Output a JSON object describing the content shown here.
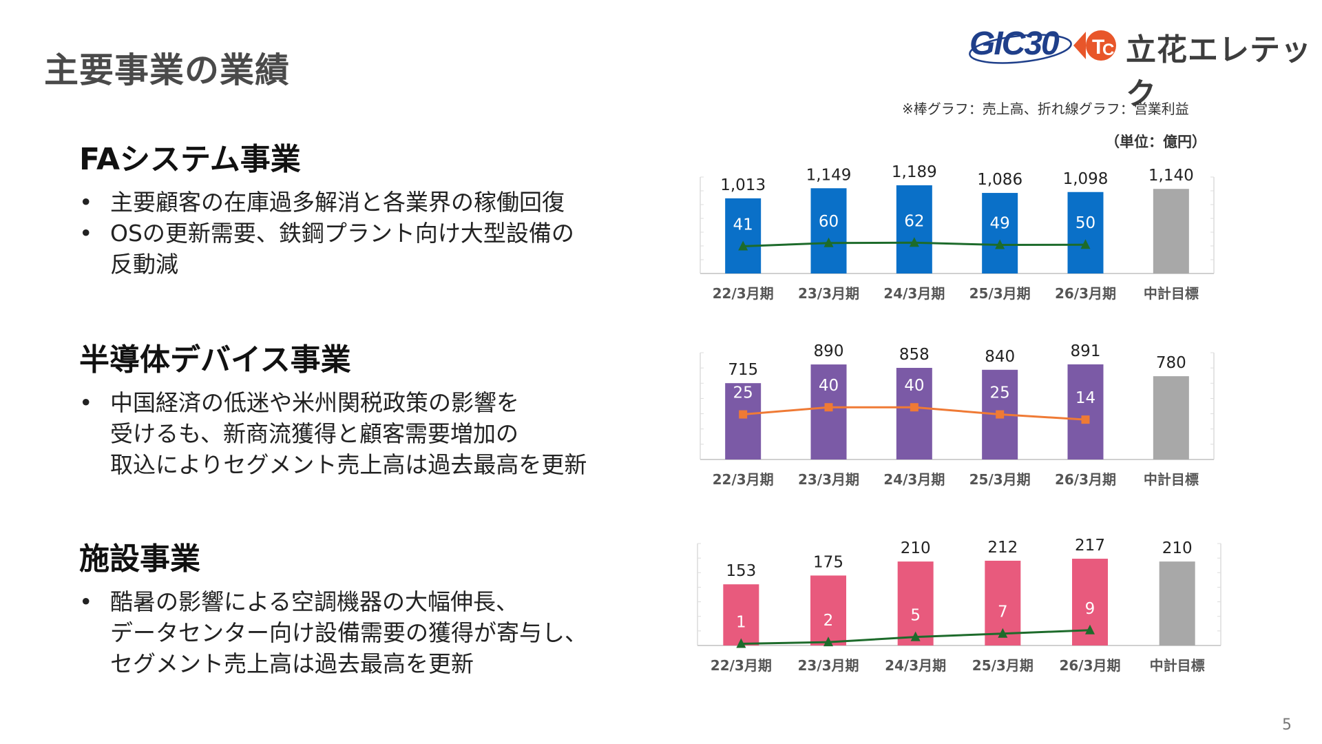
{
  "page": {
    "title": "主要事業の業績",
    "page_number": "5"
  },
  "logo": {
    "gic": "GIC30",
    "company": "立花エレテック"
  },
  "chart_note": "※棒グラフ：売上高、折れ線グラフ：営業利益",
  "unit_label": "（単位：億円）",
  "sections": [
    {
      "title": "FAシステム事業",
      "bullets": [
        {
          "lines": [
            "主要顧客の在庫過多解消と各業界の稼働回復"
          ]
        },
        {
          "lines": [
            "OSの更新需要、鉄鋼プラント向け大型設備の",
            "反動減"
          ]
        }
      ]
    },
    {
      "title": "半導体デバイス事業",
      "bullets": [
        {
          "lines": [
            "中国経済の低迷や米州関税政策の影響を",
            "受けるも、新商流獲得と顧客需要増加の",
            "取込によりセグメント売上高は過去最高を更新"
          ]
        }
      ]
    },
    {
      "title": "施設事業",
      "bullets": [
        {
          "lines": [
            "酷暑の影響による空調機器の大幅伸長、",
            "データセンター向け設備需要の獲得が寄与し、",
            "セグメント売上高は過去最高を更新"
          ]
        }
      ]
    }
  ],
  "colors": {
    "fa_bar": "#0a70c8",
    "semi_bar": "#7b5aa6",
    "fac_bar": "#e85a7d",
    "target_bar": "#a8a8a8",
    "green_line": "#1d6b2b",
    "orange_line": "#ef7a35"
  },
  "chart_data": [
    {
      "type": "bar",
      "name": "FAシステム事業",
      "categories": [
        "22/3月期",
        "23/3月期",
        "24/3月期",
        "25/3月期",
        "26/3月期",
        "中計目標"
      ],
      "series": [
        {
          "values": [
            1013,
            1149,
            1189,
            1086,
            1098,
            1140
          ],
          "labels": [
            "1,013",
            "1,149",
            "1,189",
            "1,086",
            "1,098",
            "1,140"
          ]
        },
        {
          "type": "line",
          "values": [
            41,
            60,
            62,
            49,
            50,
            null
          ],
          "labels": [
            "41",
            "60",
            "62",
            "49",
            "50",
            ""
          ]
        }
      ],
      "bar_ylim": [
        0,
        1300
      ],
      "line_ylim": [
        -120,
        450
      ],
      "line_marker": "triangle"
    },
    {
      "type": "bar",
      "name": "半導体デバイス事業",
      "categories": [
        "22/3月期",
        "23/3月期",
        "24/3月期",
        "25/3月期",
        "26/3月期",
        "中計目標"
      ],
      "series": [
        {
          "values": [
            715,
            890,
            858,
            840,
            891,
            780
          ],
          "labels": [
            "715",
            "890",
            "858",
            "840",
            "891",
            "780"
          ]
        },
        {
          "type": "line",
          "values": [
            25,
            40,
            40,
            25,
            14,
            null
          ],
          "labels": [
            "25",
            "40",
            "40",
            "25",
            "14",
            ""
          ]
        }
      ],
      "bar_ylim": [
        0,
        1000
      ],
      "line_ylim": [
        -70,
        155
      ],
      "line_marker": "square"
    },
    {
      "type": "bar",
      "name": "施設事業",
      "categories": [
        "22/3月期",
        "23/3月期",
        "24/3月期",
        "25/3月期",
        "26/3月期",
        "中計目標"
      ],
      "series": [
        {
          "values": [
            153,
            175,
            210,
            212,
            217,
            210
          ],
          "labels": [
            "153",
            "175",
            "210",
            "212",
            "217",
            "210"
          ]
        },
        {
          "type": "line",
          "values": [
            1,
            2,
            5,
            7,
            9,
            null
          ],
          "labels": [
            "1",
            "2",
            "5",
            "7",
            "9",
            ""
          ]
        }
      ],
      "bar_ylim": [
        0,
        255
      ],
      "line_ylim": [
        0,
        60
      ],
      "line_marker": "triangle"
    }
  ]
}
